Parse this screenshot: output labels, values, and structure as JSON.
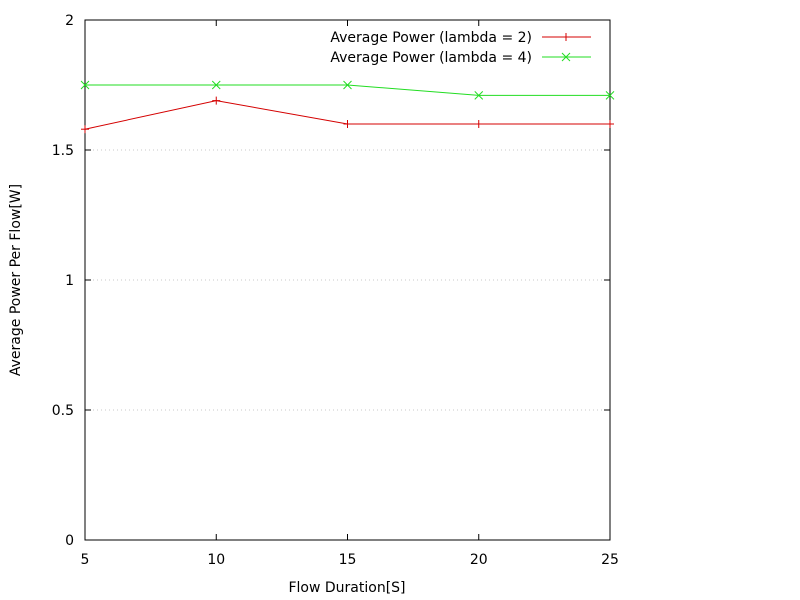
{
  "chart_data": {
    "type": "line",
    "title": "",
    "xlabel": "Flow Duration[S]",
    "ylabel": "Average Power Per Flow[W]",
    "xlim": [
      5,
      25
    ],
    "ylim": [
      0,
      2
    ],
    "x_ticks": [
      "5",
      "10",
      "15",
      "20",
      "25"
    ],
    "y_ticks": [
      "0",
      "0.5",
      "1",
      "1.5",
      "2"
    ],
    "grid": "horizontal dotted at y ticks",
    "legend_position": "top-right",
    "x": [
      5,
      10,
      15,
      20,
      25
    ],
    "series": [
      {
        "name": "Average Power (lambda = 2)",
        "color": "#d40000",
        "marker": "plus",
        "values": [
          1.58,
          1.69,
          1.6,
          1.6,
          1.6
        ]
      },
      {
        "name": "Average Power (lambda = 4)",
        "color": "#22dd22",
        "marker": "cross",
        "values": [
          1.75,
          1.75,
          1.75,
          1.71,
          1.71
        ]
      }
    ]
  }
}
